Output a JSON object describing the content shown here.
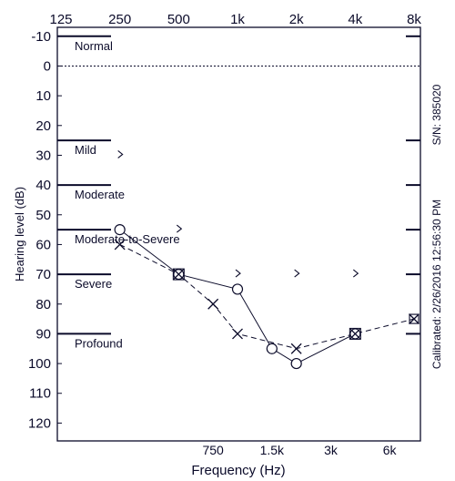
{
  "chart_data": {
    "type": "scatter",
    "title": "",
    "xlabel": "Frequency (Hz)",
    "ylabel": "Hearing level (dB)",
    "x_scale": "log",
    "x_top_ticks": [
      {
        "label": "125",
        "hz": 125
      },
      {
        "label": "250",
        "hz": 250
      },
      {
        "label": "500",
        "hz": 500
      },
      {
        "label": "1k",
        "hz": 1000
      },
      {
        "label": "2k",
        "hz": 2000
      },
      {
        "label": "4k",
        "hz": 4000
      },
      {
        "label": "8k",
        "hz": 8000
      }
    ],
    "x_bottom_ticks": [
      {
        "label": "750",
        "hz": 750
      },
      {
        "label": "1.5k",
        "hz": 1500
      },
      {
        "label": "3k",
        "hz": 3000
      },
      {
        "label": "6k",
        "hz": 6000
      }
    ],
    "y_ticks": [
      -10,
      0,
      10,
      20,
      30,
      40,
      50,
      60,
      70,
      80,
      90,
      100,
      110,
      120
    ],
    "ylim": [
      -13,
      126
    ],
    "y_inverted": true,
    "grid": false,
    "severity_bands": [
      {
        "label": "Normal",
        "db": -10
      },
      {
        "label": "Mild",
        "db": 25
      },
      {
        "label": "Moderate",
        "db": 40
      },
      {
        "label": "Moderate-to-Severe",
        "db": 55
      },
      {
        "label": "Severe",
        "db": 70
      },
      {
        "label": "Profound",
        "db": 90
      }
    ],
    "series": [
      {
        "marker": "circle",
        "points": [
          {
            "hz": 250,
            "db": 55
          },
          {
            "hz": 500,
            "db": 70
          },
          {
            "hz": 1000,
            "db": 75
          },
          {
            "hz": 1500,
            "db": 95
          },
          {
            "hz": 2000,
            "db": 100
          },
          {
            "hz": 4000,
            "db": 90
          }
        ]
      },
      {
        "marker": "cross",
        "points": [
          {
            "hz": 250,
            "db": 60
          },
          {
            "hz": 500,
            "db": 70
          },
          {
            "hz": 750,
            "db": 80
          },
          {
            "hz": 1000,
            "db": 90
          },
          {
            "hz": 2000,
            "db": 95
          },
          {
            "hz": 4000,
            "db": 90
          },
          {
            "hz": 8000,
            "db": 85
          }
        ]
      },
      {
        "marker": "bracket",
        "points": [
          {
            "hz": 250,
            "db": 30
          },
          {
            "hz": 500,
            "db": 55
          },
          {
            "hz": 1000,
            "db": 70
          },
          {
            "hz": 2000,
            "db": 70
          },
          {
            "hz": 4000,
            "db": 70
          }
        ]
      },
      {
        "marker": "boxed-x",
        "points": [
          {
            "hz": 8000,
            "db": 85
          }
        ]
      }
    ],
    "side_text": {
      "serial": "S/N: 385020",
      "calibrated": "Calibrated: 2/26/2016 12:56:30 PM"
    },
    "colors": {
      "ink": "#0b0b2a",
      "background": "#ffffff"
    }
  }
}
